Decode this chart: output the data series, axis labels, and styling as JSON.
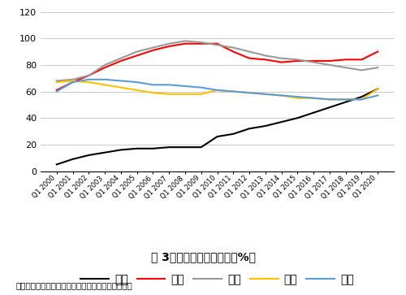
{
  "years": [
    "Q1 2000",
    "Q1 2001",
    "Q1 2002",
    "Q1 2003",
    "Q1 2004",
    "Q1 2005",
    "Q1 2006",
    "Q1 2007",
    "Q1 2008",
    "Q1 2009",
    "Q1 2010",
    "Q1 2011",
    "Q1 2012",
    "Q1 2013",
    "Q1 2014",
    "Q1 2015",
    "Q1 2016",
    "Q1 2017",
    "Q1 2018",
    "Q1 2019",
    "Q1 2020"
  ],
  "china": [
    5,
    9,
    12,
    14,
    16,
    17,
    17,
    18,
    18,
    18,
    26,
    28,
    32,
    34,
    37,
    40,
    44,
    48,
    52,
    56,
    62
  ],
  "usa": [
    61,
    67,
    72,
    78,
    83,
    87,
    91,
    94,
    96,
    96,
    96,
    90,
    85,
    84,
    82,
    83,
    83,
    83,
    84,
    84,
    90
  ],
  "uk": [
    68,
    69,
    72,
    80,
    85,
    90,
    93,
    96,
    98,
    97,
    95,
    93,
    90,
    87,
    85,
    84,
    82,
    80,
    78,
    76,
    78
  ],
  "japan": [
    67,
    68,
    67,
    65,
    63,
    61,
    59,
    58,
    58,
    58,
    61,
    60,
    59,
    58,
    57,
    55,
    55,
    54,
    54,
    54,
    62
  ],
  "germany": [
    60,
    67,
    69,
    69,
    68,
    67,
    65,
    65,
    64,
    63,
    61,
    60,
    59,
    58,
    57,
    56,
    55,
    54,
    54,
    54,
    57
  ],
  "colors": {
    "china": "#000000",
    "usa": "#ff0000",
    "uk": "#999999",
    "japan": "#ffc000",
    "germany": "#5b9bd5"
  },
  "ylim": [
    0,
    120
  ],
  "yticks": [
    0,
    20,
    40,
    60,
    80,
    100,
    120
  ],
  "title": "图 3各国居民部门杠杆率（%）",
  "source": "资料来源：国际金融协会；国家资产负倒表研究中心",
  "legend_labels": [
    "中国",
    "美国",
    "英国",
    "日本",
    "德国"
  ]
}
